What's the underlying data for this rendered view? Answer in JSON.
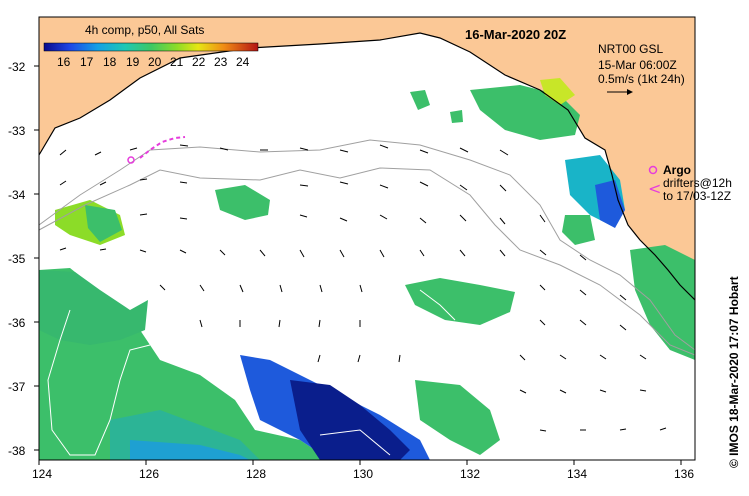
{
  "title": "16-Mar-2020 20Z",
  "colorbar": {
    "title": "4h comp, p50, All Sats",
    "labels": [
      "16",
      "17",
      "18",
      "19",
      "20",
      "21",
      "22",
      "23",
      "24"
    ]
  },
  "info": {
    "line1": "NRT00 GSL",
    "line2": "15-Mar 06:00Z",
    "line3": "0.5m/s (1kt 24h)"
  },
  "legend": {
    "argo_label": "Argo",
    "drifters_line1": "drifters@12h",
    "drifters_line2": "to 17/03-12Z"
  },
  "credit": "© IMOS 18-Mar-2020 17:07 Hobart",
  "axes": {
    "x_ticks": [
      "124",
      "126",
      "128",
      "130",
      "132",
      "134",
      "136"
    ],
    "y_ticks": [
      "-32",
      "-33",
      "-34",
      "-35",
      "-36",
      "-37",
      "-38"
    ]
  },
  "colors": {
    "land": "#fbc896",
    "sst_green": "#3cbf6a",
    "sst_cyan": "#19b4c8",
    "sst_blue": "#1e5adc",
    "sst_navy": "#0a1e8c",
    "argo": "#e63cdc"
  }
}
